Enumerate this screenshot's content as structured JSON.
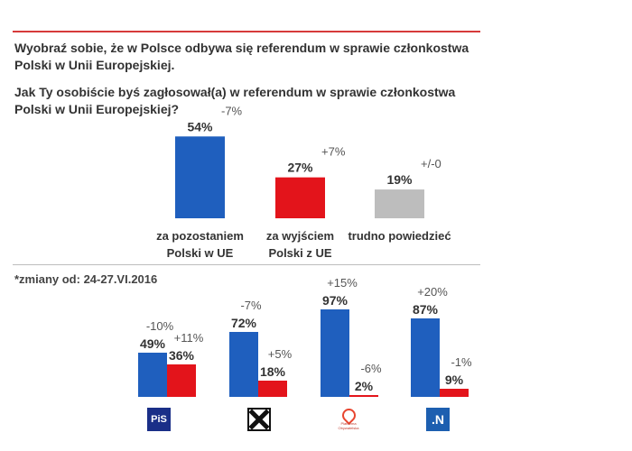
{
  "header": {
    "question1": "Wyobraź sobie, że w Polsce odbywa się referendum w sprawie członkostwa Polski w Unii Europejskiej.",
    "question2": "Jak Ty osobiście byś zagłosował(a) w referendum w sprawie członkostwa Polski w Unii Europejskiej?"
  },
  "note": "*zmiany od: 24-27.VI.2016",
  "colors": {
    "blue": "#1f5fbe",
    "red": "#e3141b",
    "gray": "#bdbdbd",
    "accent_line": "#d63a3a"
  },
  "logos": {
    "pis": "PiS",
    "kukiz": "X",
    "po": "Platforma Obywatelska",
    "n": ".N"
  },
  "chart_data": [
    {
      "type": "bar",
      "categories": [
        "za pozostaniem Polski w UE",
        "za wyjściem Polski z UE",
        "trudno powiedzieć"
      ],
      "category_lines": [
        [
          "za pozostaniem",
          "Polski w UE"
        ],
        [
          "za wyjściem",
          "Polski z UE"
        ],
        [
          "trudno powiedzieć"
        ]
      ],
      "values": [
        54,
        27,
        19
      ],
      "value_labels": [
        "54%",
        "27%",
        "19%"
      ],
      "changes": [
        "-7%",
        "+7%",
        "+/-0"
      ],
      "colors": [
        "#1f5fbe",
        "#e3141b",
        "#bdbdbd"
      ]
    },
    {
      "type": "bar",
      "categories": [
        "PiS",
        "Kukiz'15",
        "Platforma Obywatelska",
        "Nowoczesna"
      ],
      "series": [
        {
          "values": [
            49,
            72,
            97,
            87
          ],
          "value_labels": [
            "49%",
            "72%",
            "97%",
            "87%"
          ],
          "changes": [
            "-10%",
            "-7%",
            "+15%",
            "+20%"
          ],
          "color": "#1f5fbe"
        },
        {
          "values": [
            36,
            18,
            2,
            9
          ],
          "value_labels": [
            "36%",
            "18%",
            "2%",
            "9%"
          ],
          "changes": [
            "+11%",
            "+5%",
            "-6%",
            "-1%"
          ],
          "color": "#e3141b"
        }
      ]
    }
  ]
}
